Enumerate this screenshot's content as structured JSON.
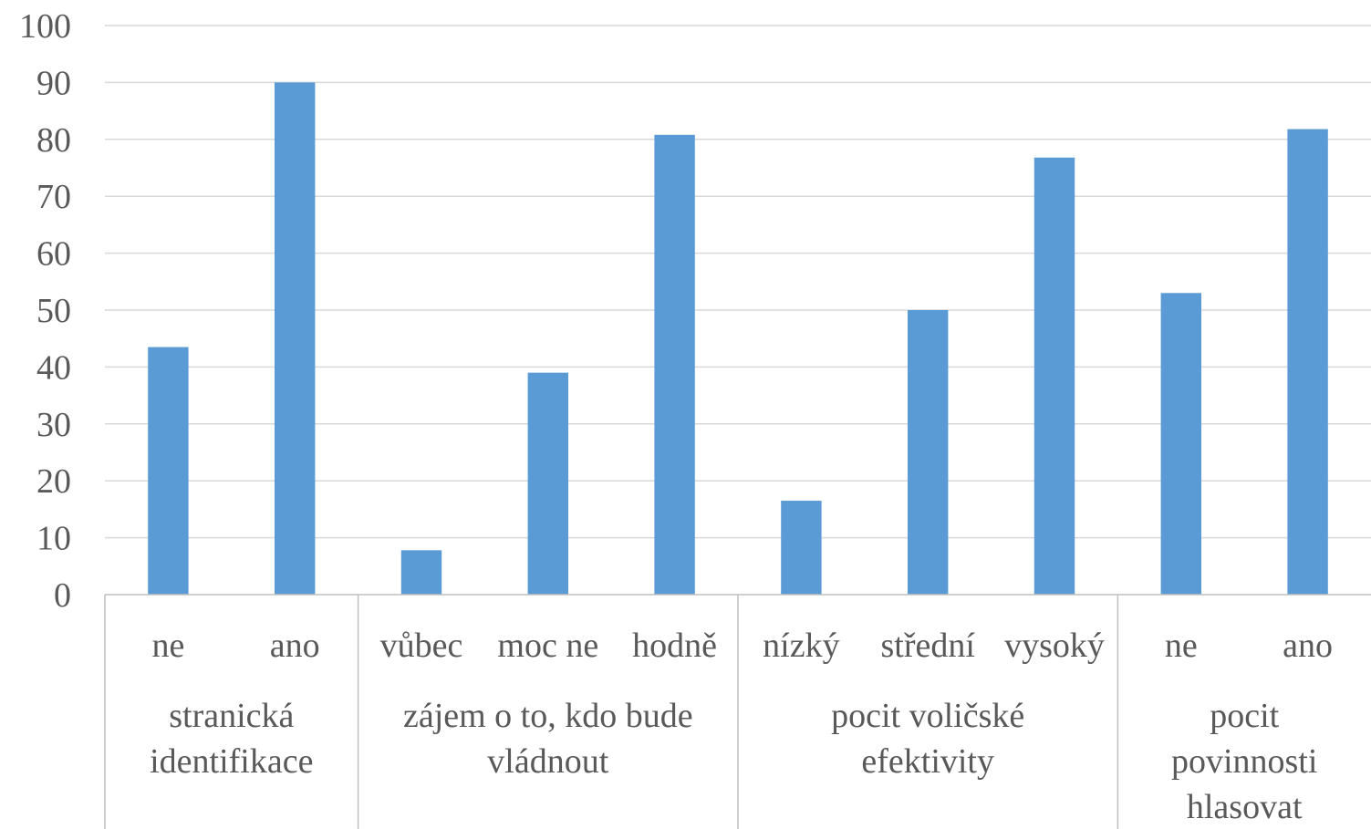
{
  "chart_data": {
    "type": "bar",
    "ylim": [
      0,
      100
    ],
    "yticks": [
      "0",
      "10",
      "20",
      "30",
      "40",
      "50",
      "60",
      "70",
      "80",
      "90",
      "100"
    ],
    "grid": true,
    "bar_color": "#5b9bd5",
    "grid_color": "#d9d9d9",
    "axis_color": "#bfbfbf",
    "groups": [
      {
        "lines": [
          "stranická",
          "identifikace"
        ],
        "categories": [
          "ne",
          "ano"
        ],
        "values": [
          43.5,
          90
        ]
      },
      {
        "lines": [
          "zájem o to, kdo bude",
          "vládnout"
        ],
        "categories": [
          "vůbec",
          "moc ne",
          "hodně"
        ],
        "values": [
          7.8,
          39,
          80.8
        ]
      },
      {
        "lines": [
          "pocit voličské",
          "efektivity"
        ],
        "categories": [
          "nízký",
          "střední",
          "vysoký"
        ],
        "values": [
          16.5,
          50,
          76.8
        ]
      },
      {
        "lines": [
          "pocit",
          "povinnosti",
          "hlasovat"
        ],
        "categories": [
          "ne",
          "ano"
        ],
        "values": [
          53,
          81.8
        ]
      }
    ]
  }
}
